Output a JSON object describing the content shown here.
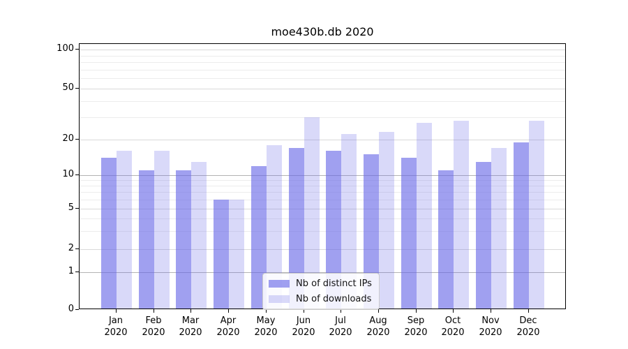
{
  "chart_data": {
    "type": "bar",
    "title": "moe430b.db 2020",
    "categories": [
      "Jan",
      "Feb",
      "Mar",
      "Apr",
      "May",
      "Jun",
      "Jul",
      "Aug",
      "Sep",
      "Oct",
      "Nov",
      "Dec"
    ],
    "year_label": "2020",
    "series": [
      {
        "name": "Nb of distinct IPs",
        "fill_color": "#6666e6",
        "fill_alpha": 0.62,
        "values": [
          14,
          11,
          11,
          6,
          12,
          17,
          16,
          15,
          14,
          11,
          13,
          19
        ]
      },
      {
        "name": "Nb of downloads",
        "fill_color": "#6666e6",
        "fill_alpha": 0.25,
        "values": [
          16,
          16,
          13,
          6,
          18,
          30,
          22,
          23,
          27,
          28,
          17,
          28
        ]
      }
    ],
    "yticks": [
      0,
      1,
      2,
      5,
      10,
      20,
      50,
      100
    ],
    "minor_yticks": [
      3,
      4,
      6,
      7,
      8,
      9,
      30,
      40,
      60,
      70,
      80,
      90
    ],
    "yscale": "log-like with 0 baseline",
    "ylim": [
      0,
      110
    ],
    "xlabel": "",
    "ylabel": "",
    "grid": true,
    "legend_position": "bottom-center inside plot"
  }
}
